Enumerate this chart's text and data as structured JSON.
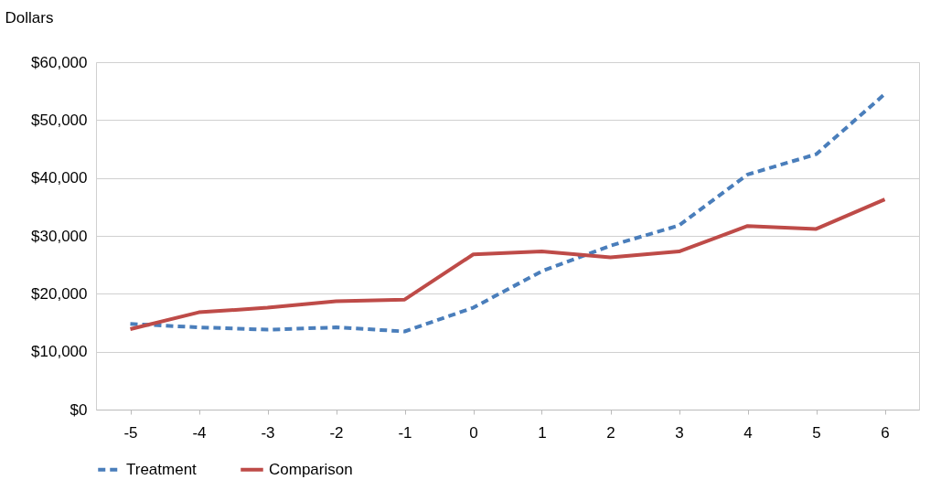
{
  "chart_data": {
    "type": "line",
    "ylabel": "Dollars",
    "categories": [
      "-5",
      "-4",
      "-3",
      "-2",
      "-1",
      "0",
      "1",
      "2",
      "3",
      "4",
      "5",
      "6"
    ],
    "series": [
      {
        "name": "Treatment",
        "color": "#4a7ebb",
        "line_style": "dashed",
        "values": [
          14800,
          14200,
          13800,
          14200,
          13500,
          17600,
          23900,
          28300,
          31800,
          40600,
          44100,
          54500
        ]
      },
      {
        "name": "Comparison",
        "color": "#be4b48",
        "line_style": "solid",
        "values": [
          13900,
          16800,
          17600,
          18700,
          19000,
          26800,
          27300,
          26300,
          27300,
          31700,
          31200,
          36300
        ]
      }
    ],
    "ylim": [
      0,
      60000
    ],
    "yticks": [
      {
        "value": 0,
        "label": "$0"
      },
      {
        "value": 10000,
        "label": "$10,000"
      },
      {
        "value": 20000,
        "label": "$20,000"
      },
      {
        "value": 30000,
        "label": "$30,000"
      },
      {
        "value": 40000,
        "label": "$40,000"
      },
      {
        "value": 50000,
        "label": "$50,000"
      },
      {
        "value": 60000,
        "label": "$60,000"
      }
    ],
    "grid": "y",
    "legend": "bottom",
    "marker": "none"
  }
}
